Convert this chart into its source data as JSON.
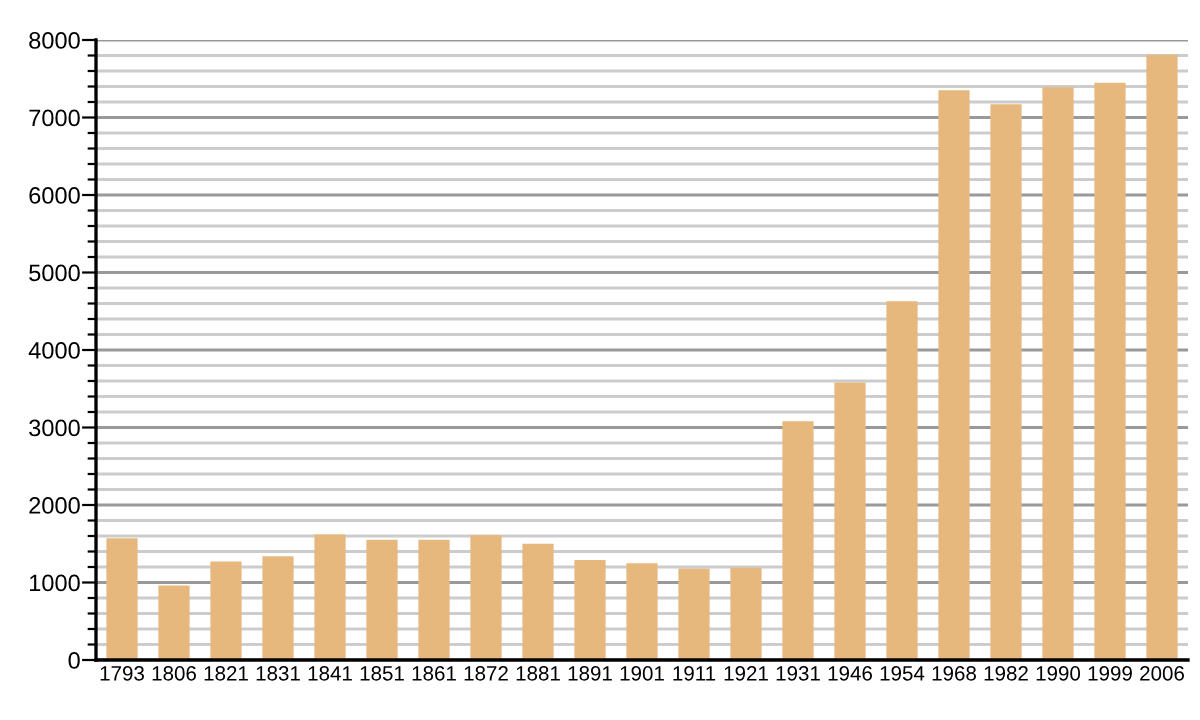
{
  "chart_data": {
    "type": "bar",
    "categories": [
      "1793",
      "1806",
      "1821",
      "1831",
      "1841",
      "1851",
      "1861",
      "1872",
      "1881",
      "1891",
      "1901",
      "1911",
      "1921",
      "1931",
      "1946",
      "1954",
      "1968",
      "1982",
      "1990",
      "1999",
      "2006"
    ],
    "values": [
      1570,
      960,
      1270,
      1340,
      1620,
      1550,
      1550,
      1610,
      1500,
      1290,
      1250,
      1180,
      1190,
      3080,
      3580,
      4630,
      7350,
      7170,
      7390,
      7450,
      7810
    ],
    "color": "#e6b87e",
    "ylim": [
      0,
      8000
    ],
    "yticks": [
      0,
      {
        "value": 200,
        "label": null
      },
      {
        "value": 400,
        "label": null
      },
      {
        "value": 600,
        "label": null
      },
      {
        "value": 800,
        "label": null
      },
      1000,
      {
        "value": 1200,
        "label": null
      },
      {
        "value": 1400,
        "label": null
      },
      {
        "value": 1600,
        "label": null
      },
      {
        "value": 1800,
        "label": null
      },
      2000,
      {
        "value": 2200,
        "label": null
      },
      {
        "value": 2400,
        "label": null
      },
      {
        "value": 2600,
        "label": null
      },
      {
        "value": 2800,
        "label": null
      },
      3000,
      {
        "value": 3200,
        "label": null
      },
      {
        "value": 3400,
        "label": null
      },
      {
        "value": 3600,
        "label": null
      },
      {
        "value": 3800,
        "label": null
      },
      4000,
      {
        "value": 4200,
        "label": null
      },
      {
        "value": 4400,
        "label": null
      },
      {
        "value": 4600,
        "label": null
      },
      {
        "value": 4800,
        "label": null
      },
      5000,
      {
        "value": 5200,
        "label": null
      },
      {
        "value": 5400,
        "label": null
      },
      {
        "value": 5600,
        "label": null
      },
      {
        "value": 5800,
        "label": null
      },
      6000,
      {
        "value": 6200,
        "label": null
      },
      {
        "value": 6400,
        "label": null
      },
      {
        "value": 6600,
        "label": null
      },
      {
        "value": 6800,
        "label": null
      },
      7000,
      {
        "value": 7200,
        "label": null
      },
      {
        "value": 7400,
        "label": null
      },
      {
        "value": 7600,
        "label": null
      },
      {
        "value": 7800,
        "label": null
      },
      8000
    ],
    "grid": "y"
  }
}
